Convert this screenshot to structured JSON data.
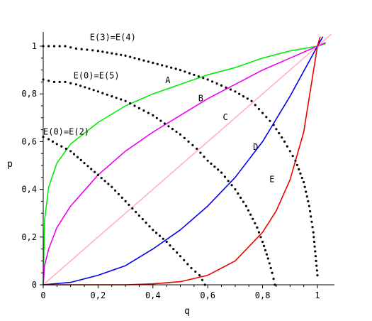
{
  "chart_data": {
    "type": "line",
    "title": "",
    "xlabel": "q",
    "ylabel": "p",
    "xlim": [
      0,
      1.05
    ],
    "ylim": [
      0,
      1.05
    ],
    "grid": false,
    "x_ticks": [
      "0",
      "0,2",
      "0,4",
      "0,6",
      "0,8",
      "1"
    ],
    "y_ticks": [
      "0",
      "0,2",
      "0,4",
      "0,6",
      "0,8",
      "1"
    ],
    "series": [
      {
        "name": "A",
        "color": "#00ee00",
        "x": [
          0,
          0.005,
          0.02,
          0.05,
          0.1,
          0.2,
          0.3,
          0.4,
          0.5,
          0.6,
          0.7,
          0.8,
          0.9,
          1.0,
          1.03
        ],
        "y": [
          0.0,
          0.27,
          0.41,
          0.51,
          0.59,
          0.68,
          0.75,
          0.8,
          0.84,
          0.88,
          0.91,
          0.95,
          0.98,
          1.0,
          1.01
        ]
      },
      {
        "name": "B",
        "color": "#ee00ee",
        "x": [
          0,
          0.005,
          0.02,
          0.05,
          0.1,
          0.2,
          0.3,
          0.4,
          0.5,
          0.6,
          0.7,
          0.8,
          0.9,
          1.0,
          1.03
        ],
        "y": [
          0.0,
          0.08,
          0.15,
          0.24,
          0.33,
          0.46,
          0.56,
          0.64,
          0.71,
          0.78,
          0.84,
          0.9,
          0.95,
          1.0,
          1.015
        ]
      },
      {
        "name": "C",
        "color": "#ffb0c8",
        "x": [
          0,
          1.05
        ],
        "y": [
          0,
          1.05
        ]
      },
      {
        "name": "D",
        "color": "#0000ee",
        "x": [
          0,
          0.1,
          0.2,
          0.3,
          0.4,
          0.5,
          0.6,
          0.7,
          0.8,
          0.9,
          1.0,
          1.02
        ],
        "y": [
          0,
          0.01,
          0.04,
          0.08,
          0.15,
          0.23,
          0.33,
          0.45,
          0.6,
          0.79,
          1.0,
          1.04
        ]
      },
      {
        "name": "E",
        "color": "#ee0000",
        "x": [
          0,
          0.3,
          0.4,
          0.5,
          0.6,
          0.7,
          0.8,
          0.85,
          0.9,
          0.95,
          1.0,
          1.01
        ],
        "y": [
          0,
          0.0,
          0.004,
          0.013,
          0.04,
          0.1,
          0.22,
          0.31,
          0.44,
          0.64,
          1.0,
          1.04
        ]
      }
    ],
    "dotted_curves": [
      {
        "name": "E(3)=E(4)",
        "x": [
          0,
          0.04,
          0.08,
          0.12,
          0.2,
          0.3,
          0.4,
          0.5,
          0.6,
          0.7,
          0.76,
          0.8,
          0.84,
          0.88,
          0.92,
          0.95,
          0.97,
          0.985,
          0.995,
          1.0
        ],
        "y": [
          1.0,
          1.0,
          1.0,
          0.99,
          0.98,
          0.96,
          0.93,
          0.9,
          0.86,
          0.81,
          0.77,
          0.72,
          0.67,
          0.6,
          0.52,
          0.43,
          0.33,
          0.22,
          0.1,
          0.04
        ]
      },
      {
        "name": "E(0)=E(5)",
        "x": [
          0,
          0.04,
          0.08,
          0.12,
          0.2,
          0.3,
          0.4,
          0.5,
          0.56,
          0.6,
          0.65,
          0.7,
          0.74,
          0.78,
          0.8,
          0.82,
          0.835,
          0.845
        ],
        "y": [
          0.86,
          0.85,
          0.85,
          0.84,
          0.81,
          0.77,
          0.71,
          0.63,
          0.57,
          0.52,
          0.47,
          0.4,
          0.33,
          0.24,
          0.18,
          0.11,
          0.05,
          0.0
        ]
      },
      {
        "name": "E(0)=E(2)",
        "x": [
          0,
          0.02,
          0.05,
          0.1,
          0.15,
          0.2,
          0.25,
          0.3,
          0.35,
          0.4,
          0.45,
          0.5,
          0.54,
          0.57,
          0.59
        ],
        "y": [
          0.62,
          0.61,
          0.59,
          0.56,
          0.51,
          0.46,
          0.41,
          0.35,
          0.29,
          0.23,
          0.18,
          0.12,
          0.07,
          0.04,
          0.0
        ]
      }
    ],
    "annotations": [
      {
        "text": "E(3)=E(4)",
        "x": 0.17,
        "y": 1.025
      },
      {
        "text": "E(0)=E(5)",
        "x": 0.11,
        "y": 0.865
      },
      {
        "text": "E(0)=E(2)",
        "x": 0.0,
        "y": 0.63
      },
      {
        "text": "A",
        "x": 0.445,
        "y": 0.845
      },
      {
        "text": "B",
        "x": 0.565,
        "y": 0.77
      },
      {
        "text": "C",
        "x": 0.655,
        "y": 0.69
      },
      {
        "text": "D",
        "x": 0.765,
        "y": 0.565
      },
      {
        "text": "E",
        "x": 0.825,
        "y": 0.43
      }
    ],
    "marker_color": "#000000"
  }
}
